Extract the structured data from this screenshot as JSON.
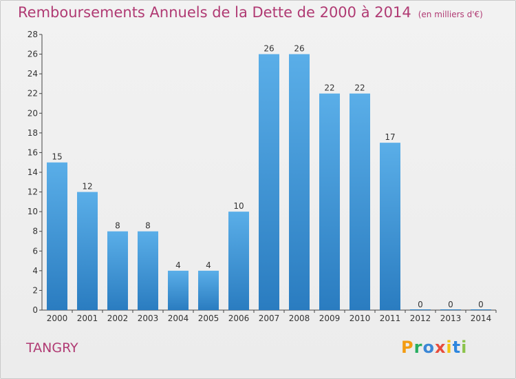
{
  "header": {
    "title": "Remboursements Annuels de la Dette de 2000 à 2014",
    "unit": "(en milliers d'€)"
  },
  "footer": {
    "commune": "TANGRY",
    "logo": "Proxiti"
  },
  "colors": {
    "title": "#b03a73",
    "bar_top": "#5aaee8",
    "bar_bottom": "#2a7cc0",
    "background": "#eeeeee"
  },
  "chart_data": {
    "type": "bar",
    "title": "Remboursements Annuels de la Dette de 2000 à 2014",
    "xlabel": "",
    "ylabel": "",
    "categories": [
      "2000",
      "2001",
      "2002",
      "2003",
      "2004",
      "2005",
      "2006",
      "2007",
      "2008",
      "2009",
      "2010",
      "2011",
      "2012",
      "2013",
      "2014"
    ],
    "values": [
      15,
      12,
      8,
      8,
      4,
      4,
      10,
      26,
      26,
      22,
      22,
      17,
      0,
      0,
      0
    ],
    "ylim": [
      0,
      28
    ],
    "yticks": [
      0,
      2,
      4,
      6,
      8,
      10,
      12,
      14,
      16,
      18,
      20,
      22,
      24,
      26,
      28
    ],
    "grid": false,
    "legend": "none"
  }
}
